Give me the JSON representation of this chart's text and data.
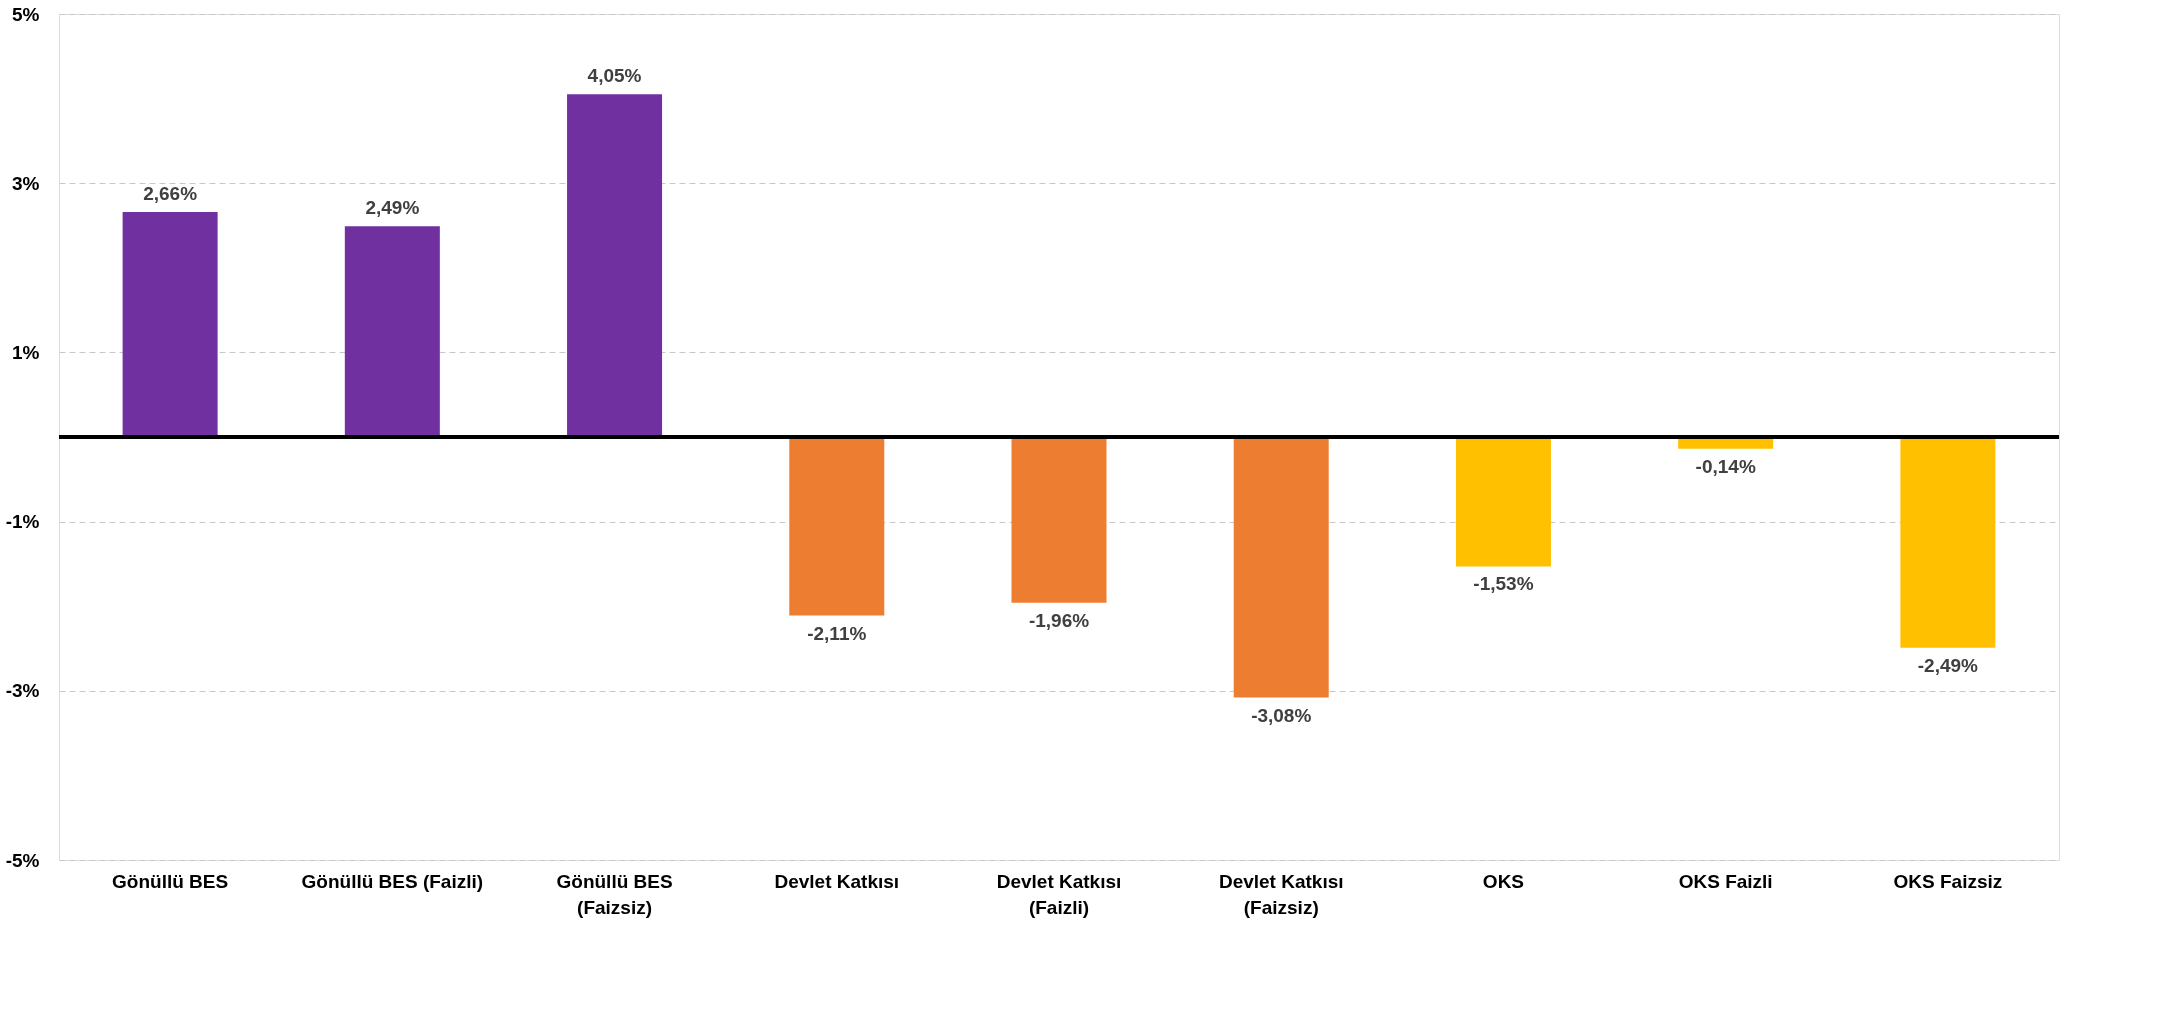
{
  "chart_data": {
    "type": "bar",
    "categories": [
      "Gönüllü BES",
      "Gönüllü BES (Faizli)",
      "Gönüllü BES (Faizsiz)",
      "Devlet Katkısı",
      "Devlet Katkısı (Faizli)",
      "Devlet Katkısı (Faizsiz)",
      "OKS",
      "OKS Faizli",
      "OKS Faizsiz"
    ],
    "values": [
      2.66,
      2.49,
      4.05,
      -2.11,
      -1.96,
      -3.08,
      -1.53,
      -0.14,
      -2.49
    ],
    "colors": [
      "#7030a0",
      "#7030a0",
      "#7030a0",
      "#ed7d31",
      "#ed7d31",
      "#ed7d31",
      "#ffc000",
      "#ffc000",
      "#ffc000"
    ],
    "value_labels": [
      "2,66%",
      "2,49%",
      "4,05%",
      "-2,11%",
      "-1,96%",
      "-3,08%",
      "-1,53%",
      "-0,14%",
      "-2,49%"
    ],
    "ylim": [
      -5,
      5
    ],
    "yticks": [
      {
        "value": -5,
        "label": "-5%"
      },
      {
        "value": -3,
        "label": "-3%"
      },
      {
        "value": -1,
        "label": "-1%"
      },
      {
        "value": 1,
        "label": "1%"
      },
      {
        "value": 3,
        "label": "3%"
      },
      {
        "value": 5,
        "label": "5%"
      }
    ],
    "grid": "y"
  }
}
